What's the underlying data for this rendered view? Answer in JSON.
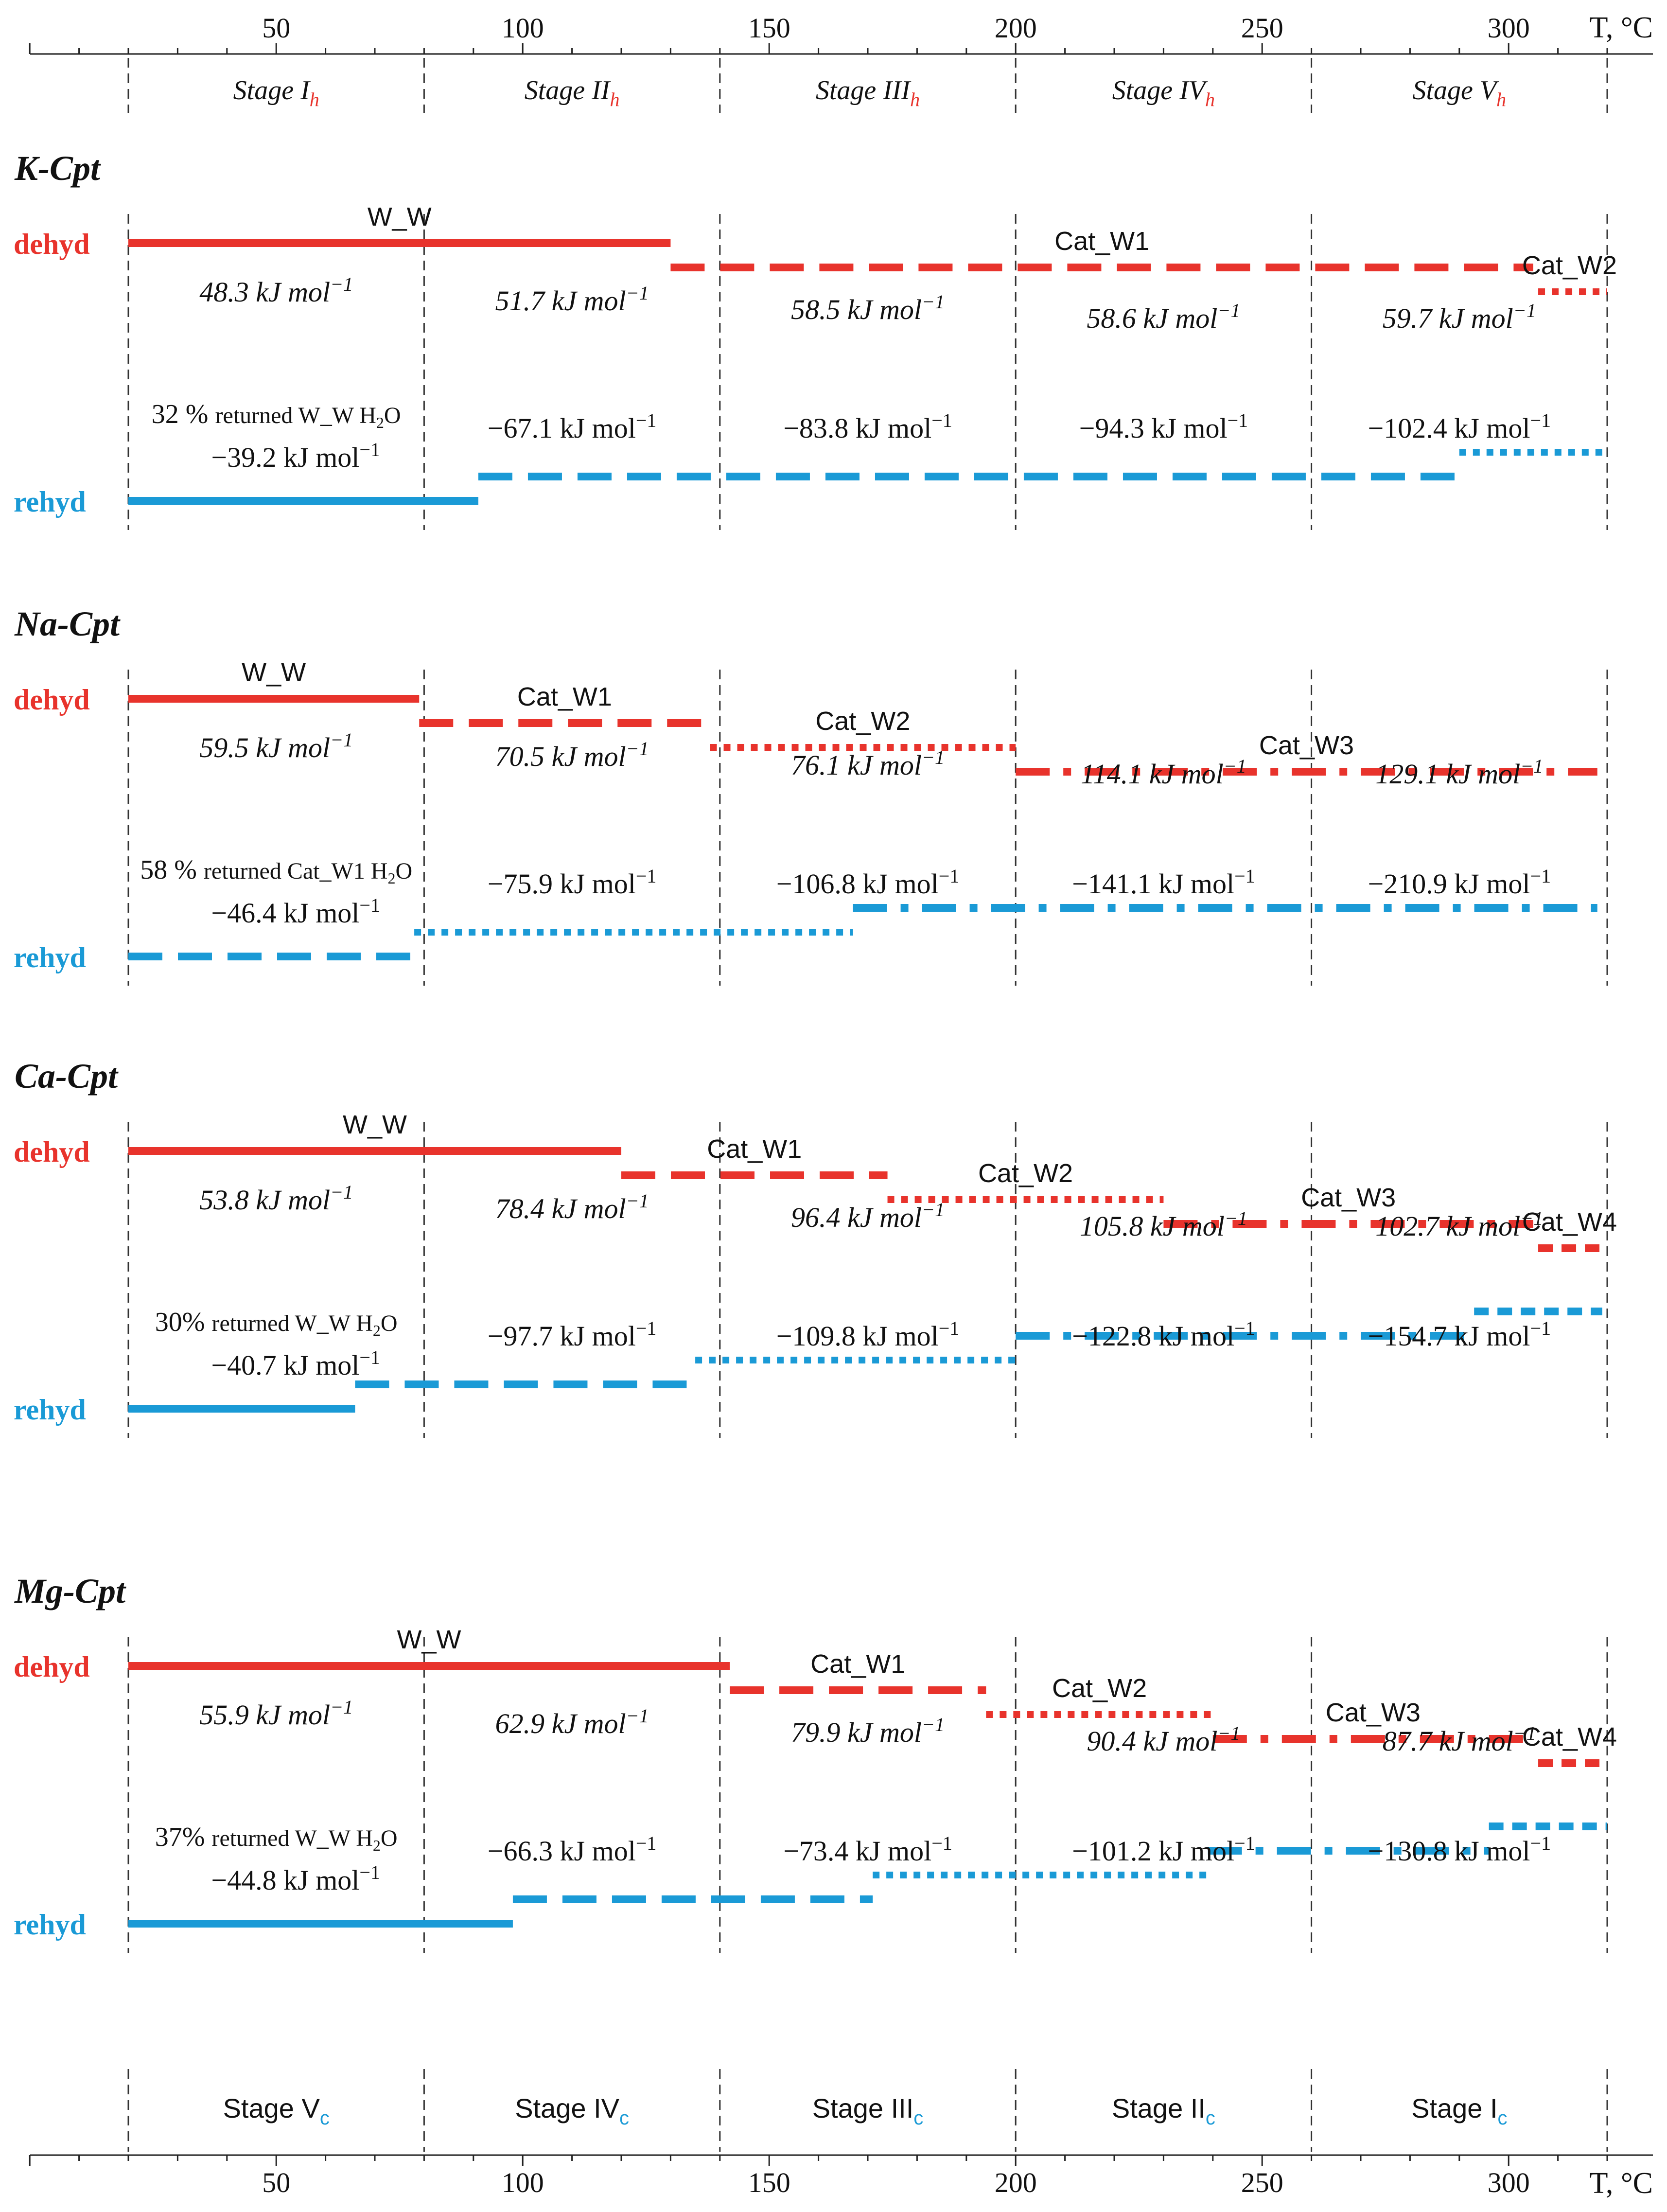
{
  "axis": {
    "unit": "T, °C",
    "ticks": [
      "50",
      "100",
      "150",
      "200",
      "250",
      "300"
    ]
  },
  "stages_heating": [
    {
      "label": "Stage I",
      "sub": "h"
    },
    {
      "label": "Stage II",
      "sub": "h"
    },
    {
      "label": "Stage III",
      "sub": "h"
    },
    {
      "label": "Stage IV",
      "sub": "h"
    },
    {
      "label": "Stage V",
      "sub": "h"
    }
  ],
  "stages_cooling": [
    {
      "label": "Stage V",
      "sub": "c"
    },
    {
      "label": "Stage IV",
      "sub": "c"
    },
    {
      "label": "Stage III",
      "sub": "c"
    },
    {
      "label": "Stage II",
      "sub": "c"
    },
    {
      "label": "Stage I",
      "sub": "c"
    }
  ],
  "colors": {
    "dehyd": "#e8332c",
    "rehyd": "#1a9ad6",
    "sub_red": "#e8332c",
    "sub_blue": "#1a9ad6"
  },
  "row_labels": {
    "dehyd": "dehyd",
    "rehyd": "rehyd"
  },
  "energy_unit": "kJ mol",
  "energy_exp": "−1",
  "panels": [
    {
      "title": "K-Cpt",
      "dehyd": [
        {
          "from": 20,
          "to": 130,
          "style": "solid",
          "type": "W_W"
        },
        {
          "from": 130,
          "to": 305,
          "style": "dash",
          "type": "Cat_W1"
        },
        {
          "from": 306,
          "to": 320,
          "style": "dot",
          "type": "Cat_W2"
        }
      ],
      "dehyd_energies": [
        "48.3",
        "51.7",
        "58.5",
        "58.6",
        "59.7"
      ],
      "rehyd": [
        {
          "from": 20,
          "to": 91,
          "style": "solid"
        },
        {
          "from": 91,
          "to": 290,
          "style": "dash"
        },
        {
          "from": 290,
          "to": 320,
          "style": "dot"
        }
      ],
      "rehyd_energies": [
        "−39.2",
        "−67.1",
        "−83.8",
        "−94.3",
        "−102.4"
      ],
      "returned": {
        "pct": "32 %",
        "text": "returned W_W H",
        "sub": "2",
        "tail": "O"
      }
    },
    {
      "title": "Na-Cpt",
      "dehyd": [
        {
          "from": 20,
          "to": 79,
          "style": "solid",
          "type": "W_W"
        },
        {
          "from": 79,
          "to": 138,
          "style": "dash",
          "type": "Cat_W1"
        },
        {
          "from": 138,
          "to": 200,
          "style": "dot",
          "type": "Cat_W2"
        },
        {
          "from": 200,
          "to": 318,
          "style": "dashdot",
          "type": "Cat_W3"
        }
      ],
      "dehyd_energies": [
        "59.5",
        "70.5",
        "76.1",
        "114.1",
        "129.1"
      ],
      "rehyd": [
        {
          "from": 20,
          "to": 78,
          "style": "dash"
        },
        {
          "from": 78,
          "to": 167,
          "style": "dot"
        },
        {
          "from": 167,
          "to": 318,
          "style": "dashdot"
        }
      ],
      "rehyd_energies": [
        "−46.4",
        "−75.9",
        "−106.8",
        "−141.1",
        "−210.9"
      ],
      "returned": {
        "pct": "58 %",
        "text": "returned Cat_W1 H",
        "sub": "2",
        "tail": "O"
      }
    },
    {
      "title": "Ca-Cpt",
      "dehyd": [
        {
          "from": 20,
          "to": 120,
          "style": "solid",
          "type": "W_W"
        },
        {
          "from": 120,
          "to": 174,
          "style": "dash",
          "type": "Cat_W1"
        },
        {
          "from": 174,
          "to": 230,
          "style": "dot",
          "type": "Cat_W2"
        },
        {
          "from": 230,
          "to": 305,
          "style": "dashdot",
          "type": "Cat_W3"
        },
        {
          "from": 306,
          "to": 320,
          "style": "shortdash",
          "type": "Cat_W4"
        }
      ],
      "dehyd_energies": [
        "53.8",
        "78.4",
        "96.4",
        "105.8",
        "102.7"
      ],
      "rehyd": [
        {
          "from": 20,
          "to": 66,
          "style": "solid"
        },
        {
          "from": 66,
          "to": 135,
          "style": "dash"
        },
        {
          "from": 135,
          "to": 200,
          "style": "dot"
        },
        {
          "from": 200,
          "to": 293,
          "style": "dashdot"
        },
        {
          "from": 293,
          "to": 319,
          "style": "shortdash"
        }
      ],
      "rehyd_energies": [
        "−40.7",
        "−97.7",
        "−109.8",
        "−122.8",
        "−154.7"
      ],
      "returned": {
        "pct": "30%",
        "text": "returned W_W H",
        "sub": "2",
        "tail": "O"
      }
    },
    {
      "title": "Mg-Cpt",
      "dehyd": [
        {
          "from": 20,
          "to": 142,
          "style": "solid",
          "type": "W_W"
        },
        {
          "from": 142,
          "to": 194,
          "style": "dash",
          "type": "Cat_W1"
        },
        {
          "from": 194,
          "to": 240,
          "style": "dot",
          "type": "Cat_W2"
        },
        {
          "from": 240,
          "to": 305,
          "style": "dashdot",
          "type": "Cat_W3"
        },
        {
          "from": 306,
          "to": 320,
          "style": "shortdash",
          "type": "Cat_W4"
        }
      ],
      "dehyd_energies": [
        "55.9",
        "62.9",
        "79.9",
        "90.4",
        "87.7"
      ],
      "rehyd": [
        {
          "from": 20,
          "to": 98,
          "style": "solid"
        },
        {
          "from": 98,
          "to": 171,
          "style": "dash"
        },
        {
          "from": 171,
          "to": 239,
          "style": "dot"
        },
        {
          "from": 239,
          "to": 296,
          "style": "dashdot"
        },
        {
          "from": 296,
          "to": 320,
          "style": "shortdash"
        }
      ],
      "rehyd_energies": [
        "−44.8",
        "−66.3",
        "−73.4",
        "−101.2",
        "−130.8"
      ],
      "returned": {
        "pct": "37%",
        "text": "returned W_W H",
        "sub": "2",
        "tail": "O"
      }
    }
  ]
}
